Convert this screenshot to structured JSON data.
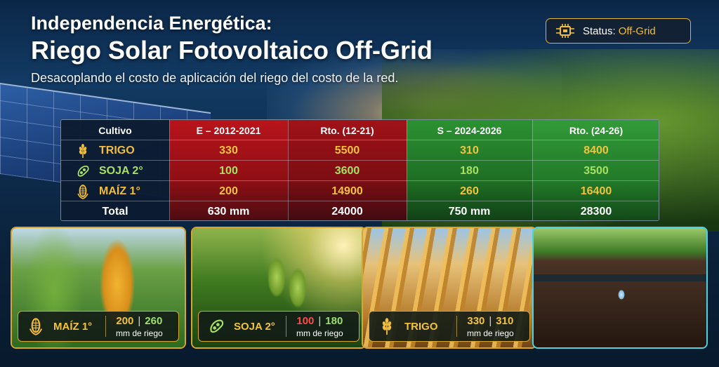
{
  "header": {
    "title_line1": "Independencia Energética:",
    "title_line2": "Riego Solar Fotovoltaico Off-Grid",
    "subtitle": "Desacoplando el costo de aplicación del riego del costo de la red."
  },
  "status": {
    "label": "Status:",
    "value": "Off-Grid",
    "icon": "solar-chip-icon"
  },
  "table": {
    "headers": [
      "Cultivo",
      "E – 2012-2021",
      "Rto. (12-21)",
      "S – 2024-2026",
      "Rto. (24-26)"
    ],
    "rows": [
      {
        "crop": "TRIGO",
        "icon": "wheat-icon",
        "e_mm": "330",
        "e_rto": "5500",
        "s_mm": "310",
        "s_rto": "8400"
      },
      {
        "crop": "SOJA 2°",
        "icon": "soy-icon",
        "e_mm": "100",
        "e_rto": "3600",
        "s_mm": "180",
        "s_rto": "3500"
      },
      {
        "crop": "MAÍZ 1°",
        "icon": "corn-icon",
        "e_mm": "200",
        "e_rto": "14900",
        "s_mm": "260",
        "s_rto": "16400"
      }
    ],
    "total": {
      "label": "Total",
      "e_mm": "630 mm",
      "e_rto": "24000",
      "s_mm": "750 mm",
      "s_rto": "28300"
    }
  },
  "cards": [
    {
      "name": "MAÍZ 1°",
      "icon": "corn-icon",
      "before": "200",
      "after": "260",
      "unit": "mm de riego"
    },
    {
      "name": "SOJA 2°",
      "icon": "soy-icon",
      "before": "100",
      "after": "180",
      "unit": "mm de riego"
    },
    {
      "name": "TRIGO",
      "icon": "wheat-icon",
      "before": "330",
      "after": "310",
      "unit": "mm de riego"
    }
  ],
  "colors": {
    "accent_gold": "#f4c33c",
    "header_red": "#b8141b",
    "header_green": "#2b9132",
    "soy_green": "#a8e063",
    "before_red": "#ff4a4a",
    "after_green": "#9ee06a",
    "drip_card_border": "#4fd1de"
  }
}
